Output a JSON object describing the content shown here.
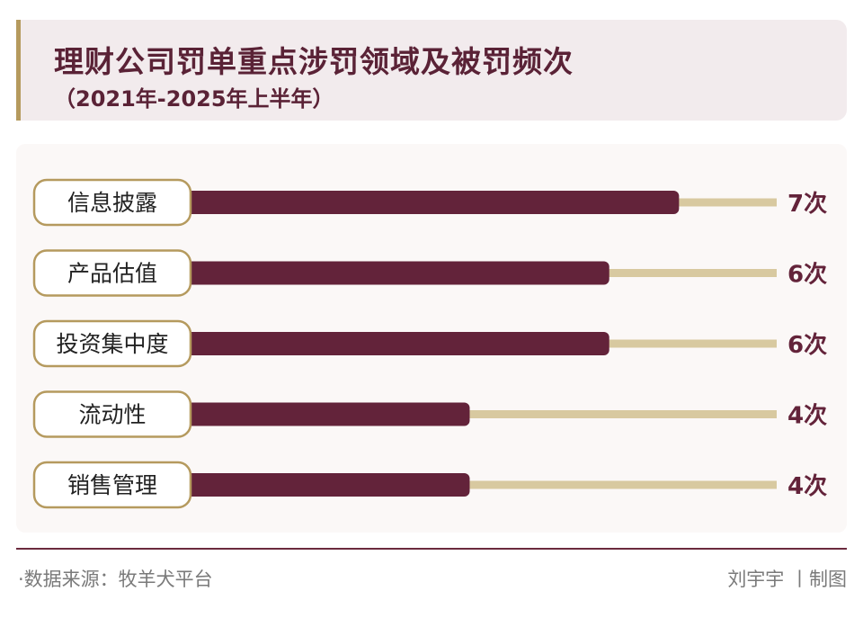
{
  "header": {
    "title": "理财公司罚单重点涉罚领域及被罚频次",
    "subtitle": "（2021年-2025年上半年）"
  },
  "colors": {
    "bar": "#63233a",
    "track": "#d8c9a0",
    "label_border": "#b59a5e",
    "value_text": "#63233a",
    "title_text": "#5a2236"
  },
  "chart_data": {
    "type": "bar",
    "orientation": "horizontal",
    "categories": [
      "信息披露",
      "产品估值",
      "投资集中度",
      "流动性",
      "销售管理"
    ],
    "values": [
      7,
      6,
      6,
      4,
      4
    ],
    "value_labels": [
      "7次",
      "6次",
      "6次",
      "4次",
      "4次"
    ],
    "title": "理财公司罚单重点涉罚领域及被罚频次",
    "subtitle": "（2021年-2025年上半年）",
    "xlim": [
      0,
      8.4
    ],
    "grid": false,
    "legend": "none"
  },
  "footer": {
    "source": "·数据来源：牧羊犬平台",
    "credit": "刘宇宇 丨制图"
  }
}
